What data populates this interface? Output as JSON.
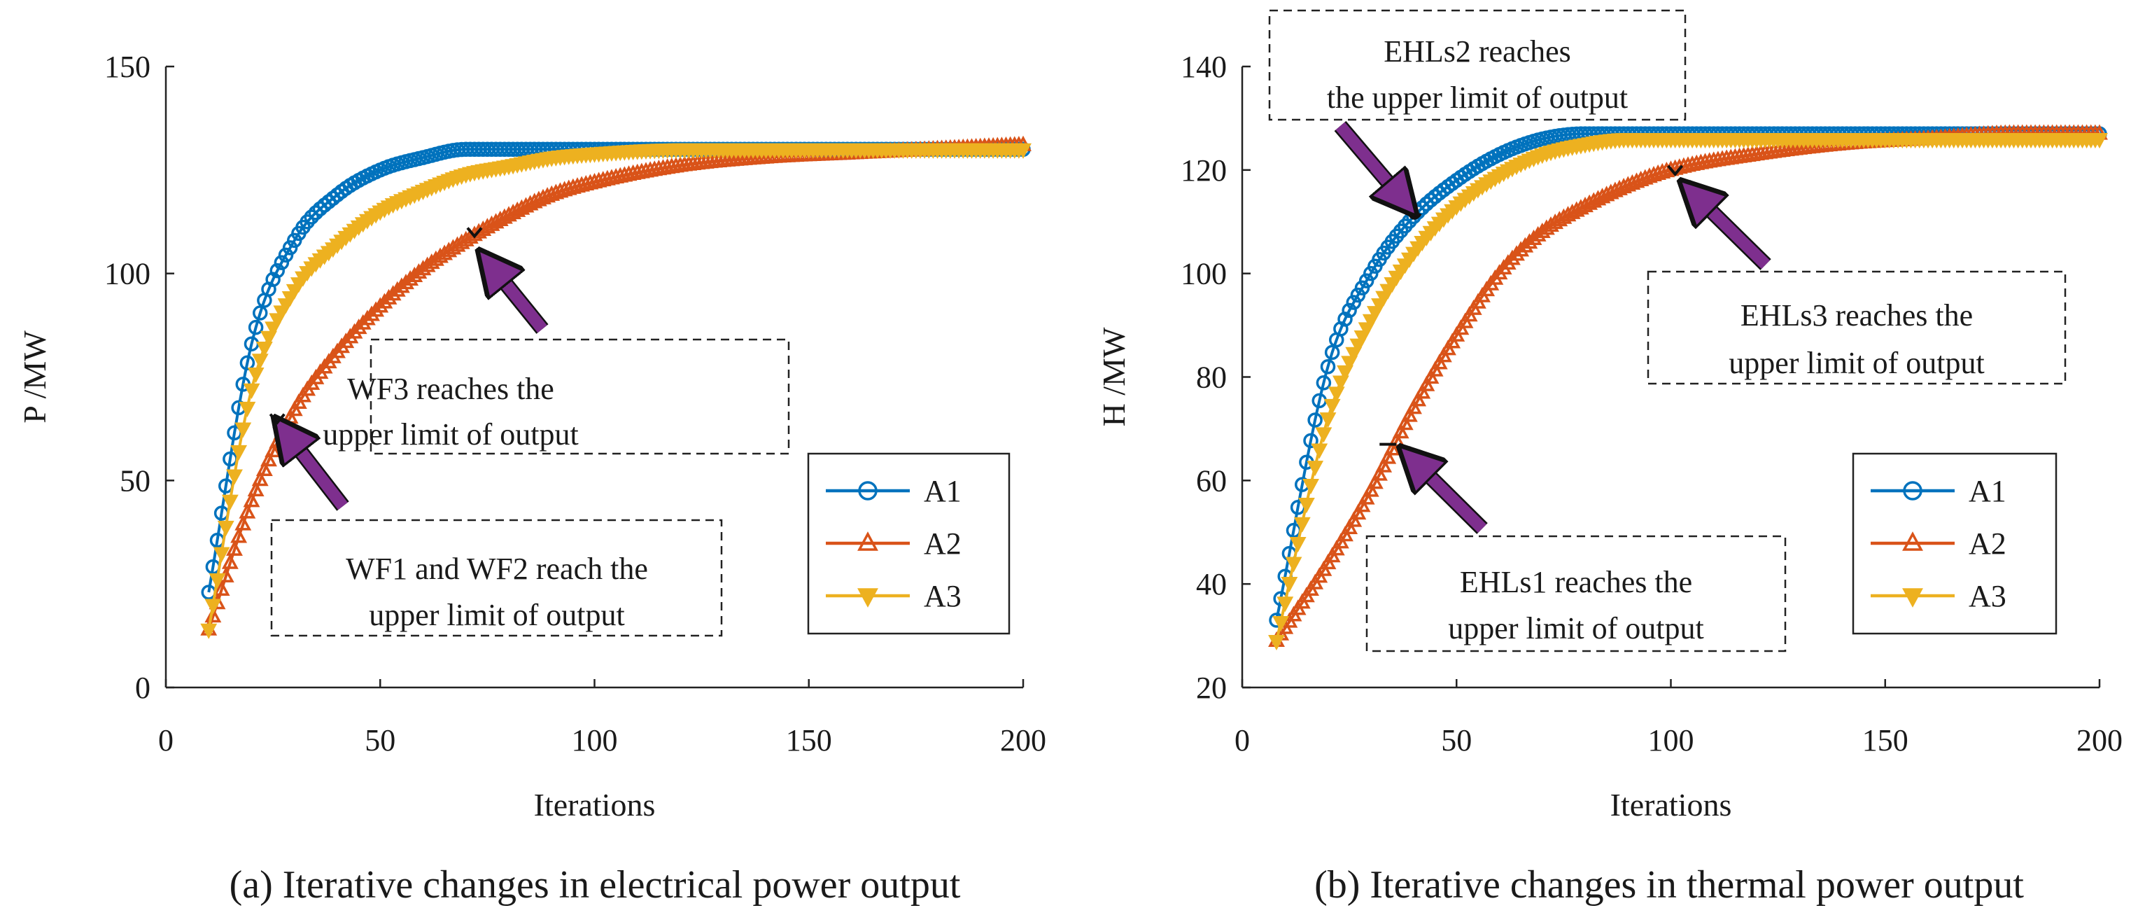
{
  "figure": {
    "captions": [
      "(a) Iterative changes in electrical power output",
      "(b) Iterative changes in thermal power output"
    ]
  },
  "colors": {
    "A1": "#0072BD",
    "A2": "#D95319",
    "A3": "#EDB120",
    "arrow": "#7E2F8E"
  },
  "chart_data": [
    {
      "type": "line",
      "title": "(a) Iterative changes in electrical power output",
      "xlabel": "Iterations",
      "ylabel": "P /MW",
      "xlim": [
        0,
        200
      ],
      "ylim": [
        0,
        150
      ],
      "xticks": [
        0,
        50,
        100,
        150,
        200
      ],
      "yticks": [
        0,
        50,
        100,
        150
      ],
      "grid": false,
      "legend_position": "lower-right",
      "x": [
        10,
        20,
        30,
        40,
        50,
        60,
        70,
        80,
        90,
        100,
        120,
        140,
        160,
        180,
        200
      ],
      "series": [
        {
          "name": "A1",
          "marker": "circle",
          "values": [
            23,
            83,
            108,
            119,
            125,
            128,
            130,
            130,
            130,
            130,
            130,
            130,
            130,
            130,
            130
          ]
        },
        {
          "name": "A2",
          "marker": "triangle-up",
          "values": [
            14,
            45,
            67,
            81,
            92,
            101,
            108,
            114,
            119,
            122,
            126,
            128,
            129,
            130,
            131
          ]
        },
        {
          "name": "A3",
          "marker": "triangle-down",
          "values": [
            14,
            72,
            96,
            107,
            115,
            120,
            124,
            126,
            128,
            129,
            130,
            130,
            130,
            130,
            130
          ]
        }
      ],
      "annotations": [
        {
          "text_lines": [
            "WF3 reaches the",
            "upper limit of output"
          ],
          "x": 72,
          "y": 110
        },
        {
          "text_lines": [
            "WF1 and WF2 reach the",
            "upper limit of output"
          ],
          "x": 26,
          "y": 65
        }
      ]
    },
    {
      "type": "line",
      "title": "(b) Iterative changes in thermal power output",
      "xlabel": "Iterations",
      "ylabel": "H /MW",
      "xlim": [
        0,
        200
      ],
      "ylim": [
        20,
        140
      ],
      "xticks": [
        0,
        50,
        100,
        150,
        200
      ],
      "yticks": [
        20,
        40,
        60,
        80,
        100,
        120,
        140
      ],
      "grid": false,
      "legend_position": "lower-right",
      "x": [
        8,
        20,
        30,
        40,
        50,
        60,
        70,
        80,
        90,
        100,
        120,
        140,
        160,
        180,
        200
      ],
      "series": [
        {
          "name": "A1",
          "marker": "circle",
          "values": [
            33,
            82,
            100,
            111,
            118,
            123,
            126,
            127,
            127,
            127,
            127,
            127,
            127,
            127,
            127
          ]
        },
        {
          "name": "A2",
          "marker": "triangle-up",
          "values": [
            29,
            44,
            58,
            74,
            88,
            100,
            108,
            113,
            117,
            120,
            123,
            125,
            126,
            127,
            127
          ]
        },
        {
          "name": "A3",
          "marker": "triangle-down",
          "values": [
            29,
            72,
            91,
            104,
            113,
            119,
            123,
            125,
            126,
            126,
            126,
            126,
            126,
            126,
            126
          ]
        }
      ],
      "annotations": [
        {
          "text_lines": [
            "EHLs2 reaches",
            "the upper limit of output"
          ],
          "x": 40,
          "y": 111
        },
        {
          "text_lines": [
            "EHLs3 reaches the",
            "upper limit of output"
          ],
          "x": 101,
          "y": 120
        },
        {
          "text_lines": [
            "EHLs1 reaches the",
            "upper limit of output"
          ],
          "x": 34,
          "y": 67
        }
      ]
    }
  ]
}
